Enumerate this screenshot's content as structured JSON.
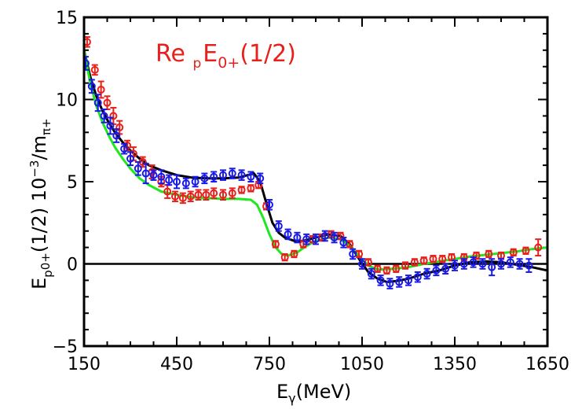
{
  "chart_data": {
    "type": "scatter",
    "title": "",
    "annotation": {
      "prefix": "Re ",
      "sub_p": "p",
      "base": "E",
      "sub_0plus": "0+",
      "suffix": "(1/2)",
      "color": "#e8201b"
    },
    "xlabel": {
      "base": "E",
      "sub": "γ",
      "rest": "(MeV)"
    },
    "ylabel": {
      "base": "E",
      "sub_p": "p",
      "sub_0plus": "0+",
      "mid": "(1/2)  10",
      "exp": "−3",
      "slash": "/m",
      "sub_pi": "π+"
    },
    "xlim": [
      150,
      1650
    ],
    "ylim": [
      -5,
      15
    ],
    "x_ticks": [
      150,
      450,
      750,
      1050,
      1350,
      1650
    ],
    "x_tick_labels": [
      "150",
      "450",
      "750",
      "1050",
      "1350",
      "1650"
    ],
    "y_ticks": [
      -5,
      0,
      5,
      10,
      15
    ],
    "y_tick_labels": [
      "−5",
      "0",
      "5",
      "10",
      "15"
    ],
    "grid": false,
    "zero_line": true,
    "series": [
      {
        "kind": "line",
        "color": "#000000",
        "x": [
          150,
          170,
          190,
          210,
          230,
          250,
          275,
          300,
          330,
          360,
          400,
          450,
          500,
          550,
          600,
          650,
          680,
          700,
          720,
          740,
          760,
          780,
          800,
          830,
          860,
          900,
          940,
          980,
          1010,
          1040,
          1070,
          1100,
          1130,
          1160,
          1200,
          1250,
          1300,
          1350,
          1400,
          1450,
          1500,
          1550,
          1600,
          1650
        ],
        "y": [
          13.0,
          11.4,
          10.2,
          9.3,
          8.6,
          8.0,
          7.4,
          6.9,
          6.4,
          6.0,
          5.7,
          5.4,
          5.25,
          5.2,
          5.2,
          5.25,
          5.4,
          5.5,
          5.0,
          3.7,
          2.5,
          1.9,
          1.6,
          1.4,
          1.4,
          1.6,
          1.8,
          1.7,
          1.2,
          0.3,
          -0.5,
          -0.9,
          -1.1,
          -1.05,
          -0.9,
          -0.6,
          -0.4,
          -0.1,
          0.1,
          0.15,
          0.1,
          -0.05,
          -0.2,
          -0.4
        ]
      },
      {
        "kind": "line",
        "color": "#1ee81e",
        "x": [
          150,
          170,
          190,
          210,
          230,
          250,
          275,
          300,
          330,
          360,
          400,
          450,
          500,
          550,
          600,
          650,
          690,
          710,
          730,
          750,
          770,
          790,
          810,
          840,
          870,
          900,
          940,
          980,
          1010,
          1040,
          1070,
          1100,
          1150,
          1200,
          1250,
          1300,
          1350,
          1400,
          1450,
          1500,
          1550,
          1600,
          1650
        ],
        "y": [
          13.0,
          11.0,
          9.6,
          8.6,
          7.8,
          7.1,
          6.4,
          5.8,
          5.2,
          4.8,
          4.4,
          4.2,
          4.05,
          4.0,
          3.95,
          3.95,
          3.9,
          3.6,
          2.8,
          1.8,
          1.0,
          0.6,
          0.5,
          0.7,
          1.1,
          1.4,
          1.6,
          1.5,
          1.1,
          0.5,
          -0.1,
          -0.35,
          -0.3,
          -0.2,
          0.0,
          0.15,
          0.3,
          0.45,
          0.55,
          0.65,
          0.75,
          0.9,
          1.0
        ]
      },
      {
        "kind": "points",
        "color": "#e8201b",
        "x": [
          160,
          185,
          205,
          225,
          245,
          265,
          290,
          310,
          340,
          370,
          400,
          420,
          445,
          470,
          495,
          520,
          545,
          570,
          600,
          630,
          660,
          690,
          715,
          740,
          770,
          800,
          830,
          860,
          890,
          920,
          950,
          980,
          1010,
          1040,
          1070,
          1100,
          1130,
          1160,
          1190,
          1220,
          1250,
          1280,
          1310,
          1340,
          1380,
          1420,
          1460,
          1500,
          1540,
          1580,
          1620
        ],
        "y": [
          13.5,
          11.8,
          10.6,
          9.8,
          9.0,
          8.3,
          7.2,
          6.7,
          6.2,
          5.6,
          5.0,
          4.4,
          4.1,
          4.0,
          4.1,
          4.2,
          4.2,
          4.3,
          4.2,
          4.3,
          4.5,
          4.6,
          4.8,
          3.5,
          1.2,
          0.4,
          0.6,
          1.2,
          1.5,
          1.6,
          1.8,
          1.7,
          1.2,
          0.6,
          0.1,
          -0.3,
          -0.4,
          -0.3,
          -0.1,
          0.1,
          0.2,
          0.3,
          0.3,
          0.4,
          0.4,
          0.5,
          0.6,
          0.5,
          0.7,
          0.8,
          1.0
        ],
        "err": [
          0.3,
          0.3,
          0.5,
          0.4,
          0.5,
          0.4,
          0.3,
          0.4,
          0.3,
          0.4,
          0.3,
          0.4,
          0.3,
          0.3,
          0.3,
          0.3,
          0.3,
          0.3,
          0.3,
          0.3,
          0.2,
          0.2,
          0.2,
          0.2,
          0.2,
          0.2,
          0.2,
          0.2,
          0.2,
          0.2,
          0.2,
          0.2,
          0.2,
          0.2,
          0.2,
          0.2,
          0.2,
          0.2,
          0.2,
          0.2,
          0.2,
          0.2,
          0.2,
          0.2,
          0.2,
          0.2,
          0.2,
          0.2,
          0.2,
          0.2,
          0.5
        ]
      },
      {
        "kind": "points",
        "color": "#1a1ae8",
        "x": [
          155,
          175,
          195,
          215,
          235,
          255,
          280,
          300,
          325,
          350,
          375,
          400,
          425,
          450,
          480,
          510,
          540,
          570,
          600,
          630,
          660,
          690,
          720,
          750,
          780,
          810,
          840,
          870,
          900,
          930,
          960,
          990,
          1020,
          1050,
          1080,
          1110,
          1140,
          1170,
          1200,
          1230,
          1260,
          1290,
          1320,
          1350,
          1380,
          1410,
          1440,
          1470,
          1500,
          1530,
          1560,
          1590
        ],
        "y": [
          12.2,
          10.8,
          9.8,
          9.0,
          8.4,
          7.8,
          7.0,
          6.4,
          5.8,
          5.5,
          5.4,
          5.3,
          5.1,
          5.0,
          4.9,
          5.0,
          5.2,
          5.3,
          5.4,
          5.5,
          5.4,
          5.3,
          5.2,
          3.6,
          2.3,
          1.8,
          1.6,
          1.5,
          1.5,
          1.7,
          1.6,
          1.3,
          0.6,
          0.0,
          -0.6,
          -1.0,
          -1.2,
          -1.1,
          -1.0,
          -0.8,
          -0.6,
          -0.4,
          -0.3,
          -0.1,
          0.0,
          0.1,
          0.0,
          -0.2,
          0.0,
          0.1,
          0.0,
          -0.1
        ],
        "err": [
          0.4,
          0.4,
          0.5,
          0.4,
          0.5,
          0.4,
          0.3,
          0.4,
          0.4,
          0.6,
          0.3,
          0.4,
          0.3,
          0.4,
          0.3,
          0.3,
          0.3,
          0.3,
          0.3,
          0.3,
          0.3,
          0.3,
          0.3,
          0.3,
          0.3,
          0.3,
          0.3,
          0.3,
          0.3,
          0.3,
          0.3,
          0.3,
          0.3,
          0.3,
          0.3,
          0.3,
          0.3,
          0.3,
          0.3,
          0.3,
          0.3,
          0.3,
          0.3,
          0.3,
          0.3,
          0.3,
          0.3,
          0.5,
          0.3,
          0.3,
          0.3,
          0.4
        ]
      }
    ]
  }
}
